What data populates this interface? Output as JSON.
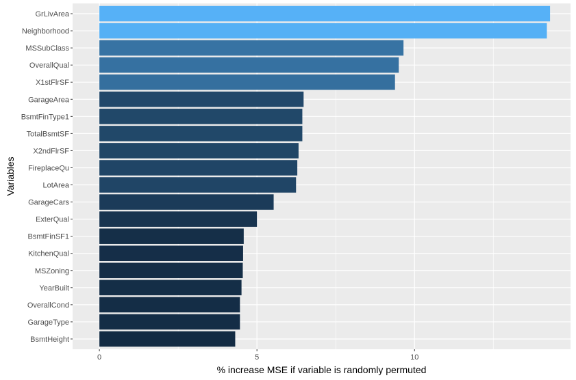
{
  "chart_data": {
    "type": "bar",
    "orientation": "horizontal",
    "xlabel": "% increase MSE if variable is randomly permuted",
    "ylabel": "Variables",
    "xlim": [
      -0.85,
      14.95
    ],
    "xticks": [
      0,
      5,
      10
    ],
    "grid": true,
    "categories": [
      "GrLivArea",
      "Neighborhood",
      "MSSubClass",
      "OverallQual",
      "X1stFlrSF",
      "GarageArea",
      "BsmtFinType1",
      "TotalBsmtSF",
      "X2ndFlrSF",
      "FireplaceQu",
      "LotArea",
      "GarageCars",
      "ExterQual",
      "BsmtFinSF1",
      "KitchenQual",
      "MSZoning",
      "YearBuilt",
      "OverallCond",
      "GarageType",
      "BsmtHeight"
    ],
    "values": [
      14.3,
      14.2,
      9.65,
      9.5,
      9.38,
      6.48,
      6.44,
      6.44,
      6.32,
      6.28,
      6.24,
      5.53,
      5.0,
      4.58,
      4.56,
      4.55,
      4.51,
      4.46,
      4.46,
      4.31
    ],
    "color_scale": {
      "low": "#132B43",
      "high": "#56B1F7"
    }
  }
}
